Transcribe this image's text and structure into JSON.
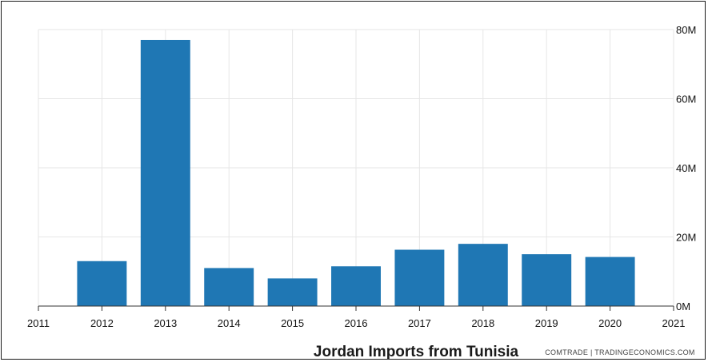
{
  "chart_data": {
    "type": "bar",
    "title": "Jordan Imports from Tunisia",
    "source": "COMTRADE | TRADINGECONOMICS.COM",
    "xlabel": "",
    "ylabel": "",
    "x_ticks": [
      "2011",
      "2012",
      "2013",
      "2014",
      "2015",
      "2016",
      "2017",
      "2018",
      "2019",
      "2020",
      "2021"
    ],
    "categories": [
      "2012",
      "2013",
      "2014",
      "2015",
      "2016",
      "2017",
      "2018",
      "2019",
      "2020"
    ],
    "values": [
      13,
      77,
      11,
      8,
      11.5,
      16.3,
      18,
      15,
      14.2
    ],
    "y_ticks": [
      {
        "value": 0,
        "label": "0M"
      },
      {
        "value": 20,
        "label": "20M"
      },
      {
        "value": 40,
        "label": "40M"
      },
      {
        "value": 60,
        "label": "60M"
      },
      {
        "value": 80,
        "label": "80M"
      }
    ],
    "ylim": [
      0,
      80
    ],
    "xlim": [
      2011,
      2021
    ],
    "y_axis_position": "right",
    "grid": true,
    "bar_color": "#1f77b4"
  }
}
